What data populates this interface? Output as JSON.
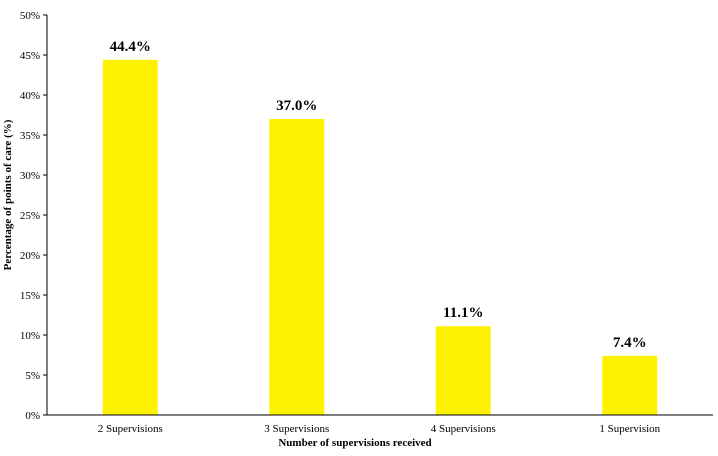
{
  "chart_data": {
    "type": "bar",
    "title": "",
    "xlabel": "Number of supervisions received",
    "ylabel": "Percentage of points of care (%)",
    "categories": [
      "2 Supervisions",
      "3 Supervisions",
      "4 Supervisions",
      "1 Supervision"
    ],
    "values": [
      44.4,
      37.0,
      11.1,
      7.4
    ],
    "data_labels": [
      "44.4%",
      "37.0%",
      "11.1%",
      "7.4%"
    ],
    "ylim": [
      0,
      50
    ],
    "yticks": [
      0,
      5,
      10,
      15,
      20,
      25,
      30,
      35,
      40,
      45,
      50
    ],
    "ytick_labels": [
      "0%",
      "5%",
      "10%",
      "15%",
      "20%",
      "25%",
      "30%",
      "35%",
      "40%",
      "45%",
      "50%"
    ],
    "grid": false,
    "legend": "none",
    "bar_color": "#FFF200",
    "axis_color": "#000000"
  }
}
